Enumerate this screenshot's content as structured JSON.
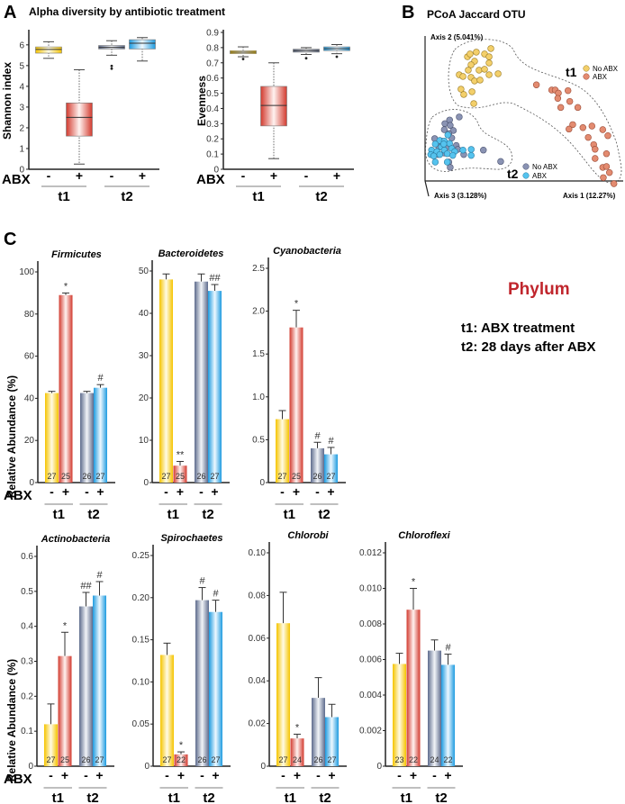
{
  "panel_labels": {
    "a": "A",
    "b": "B",
    "c": "C"
  },
  "panel_a": {
    "title": "Alpha diversity by antibiotic treatment"
  },
  "panel_b": {
    "title": "PCoA Jaccard OTU",
    "axis1": "Axis 1 (12.27%)",
    "axis2": "Axis 2 (5.041%)",
    "axis3": "Axis 3 (3.128%)",
    "legend_t1": "t1",
    "legend_t2": "t2",
    "no_abx": "No ABX",
    "abx": "ABX"
  },
  "panel_c": {
    "heading": "Phylum",
    "note1": "t1: ABX treatment",
    "note2": "t2: 28 days after ABX",
    "ylabel": "Relative Abundance (%)"
  },
  "common": {
    "abx": "ABX",
    "minus": "-",
    "plus": "+",
    "t1": "t1",
    "t2": "t2"
  },
  "colors": {
    "t1_no_abx": "#f5c400",
    "t1_abx": "#d23a2e",
    "t2_no_abx": "#5d6b8c",
    "t2_abx": "#1e9be0",
    "phylum": "#c0262d"
  },
  "chart_data": [
    {
      "type": "box",
      "id": "shannon",
      "ylabel": "Shannon index",
      "ylim": [
        0,
        6.6
      ],
      "ticks": [
        0,
        1,
        2,
        3,
        4,
        5,
        6
      ],
      "tick_labels": [
        "0",
        "1",
        "2",
        "3",
        "4",
        "5",
        "6"
      ],
      "groups": [
        "t1 No ABX",
        "t1 ABX",
        "t2 No ABX",
        "t2 ABX"
      ],
      "boxes": [
        {
          "min": 5.35,
          "q1": 5.6,
          "median": 5.78,
          "q3": 5.9,
          "max": 6.15,
          "outliers": []
        },
        {
          "min": 0.25,
          "q1": 1.6,
          "median": 2.5,
          "q3": 3.2,
          "max": 4.8,
          "outliers": []
        },
        {
          "min": 5.5,
          "q1": 5.8,
          "median": 5.88,
          "q3": 5.97,
          "max": 6.2,
          "outliers": [
            4.85,
            4.98
          ]
        },
        {
          "min": 5.22,
          "q1": 5.8,
          "median": 6.08,
          "q3": 6.25,
          "max": 6.35,
          "outliers": []
        }
      ]
    },
    {
      "type": "box",
      "id": "evenness",
      "ylabel": "Evenness",
      "ylim": [
        0,
        0.9
      ],
      "ticks": [
        0,
        0.1,
        0.2,
        0.3,
        0.4,
        0.5,
        0.6,
        0.7,
        0.8,
        0.9
      ],
      "tick_labels": [
        "0",
        "0.1",
        "0.2",
        "0.3",
        "0.4",
        "0.5",
        "0.6",
        "0.7",
        "0.8",
        "0.9"
      ],
      "groups": [
        "t1 No ABX",
        "t1 ABX",
        "t2 No ABX",
        "t2 ABX"
      ],
      "boxes": [
        {
          "min": 0.74,
          "q1": 0.76,
          "median": 0.77,
          "q3": 0.78,
          "max": 0.805,
          "outliers": [
            0.725
          ]
        },
        {
          "min": 0.07,
          "q1": 0.285,
          "median": 0.42,
          "q3": 0.545,
          "max": 0.7,
          "outliers": []
        },
        {
          "min": 0.755,
          "q1": 0.77,
          "median": 0.78,
          "q3": 0.79,
          "max": 0.8,
          "outliers": [
            0.73
          ]
        },
        {
          "min": 0.76,
          "q1": 0.78,
          "median": 0.793,
          "q3": 0.805,
          "max": 0.82,
          "outliers": [
            0.74
          ]
        }
      ]
    },
    {
      "type": "scatter",
      "id": "pcoa",
      "xlim": [
        0,
        100
      ],
      "ylim": [
        0,
        100
      ],
      "series": [
        {
          "name": "t1 No ABX",
          "points": [
            [
              21.6,
              85.6
            ],
            [
              22.9,
              87.5
            ],
            [
              26.1,
              88.8
            ],
            [
              30.3,
              87.5
            ],
            [
              33.5,
              91.3
            ],
            [
              32.6,
              85.6
            ],
            [
              25.2,
              82.5
            ],
            [
              23.4,
              80
            ],
            [
              22,
              76.3
            ],
            [
              27.5,
              76.3
            ],
            [
              30.3,
              76.9
            ],
            [
              37.2,
              73.8
            ],
            [
              17.4,
              73.1
            ],
            [
              19.3,
              71.9
            ],
            [
              23.4,
              71.3
            ],
            [
              25.2,
              68.8
            ],
            [
              28,
              69.4
            ],
            [
              32.6,
              81.3
            ],
            [
              18.3,
              63.1
            ],
            [
              19.7,
              59.4
            ],
            [
              23.9,
              61.3
            ],
            [
              24.8,
              53.1
            ],
            [
              32.6,
              73.1
            ]
          ]
        },
        {
          "name": "t1 ABX",
          "points": [
            [
              56.7,
              66.1
            ],
            [
              64.5,
              62.5
            ],
            [
              66.3,
              62.5
            ],
            [
              67.9,
              60.4
            ],
            [
              72.8,
              62.1
            ],
            [
              67.6,
              56.7
            ],
            [
              73.7,
              54.6
            ],
            [
              69.1,
              50.4
            ],
            [
              77.8,
              50.4
            ],
            [
              75.2,
              38.5
            ],
            [
              73.3,
              35.4
            ],
            [
              80.4,
              36.4
            ],
            [
              85,
              37.5
            ],
            [
              90.5,
              35
            ],
            [
              83.1,
              29.6
            ],
            [
              93.1,
              30.8
            ],
            [
              85.9,
              24.6
            ],
            [
              86.6,
              21.4
            ],
            [
              92.4,
              18.3
            ],
            [
              86.6,
              15
            ],
            [
              90.5,
              8.8
            ],
            [
              92.4,
              9.4
            ],
            [
              93.9,
              5.2
            ],
            [
              90.8,
              1.7
            ],
            [
              96.2,
              -2.5
            ]
          ]
        },
        {
          "name": "t2 No ABX",
          "points": [
            [
              17.4,
              43.8
            ],
            [
              10.1,
              39.2
            ],
            [
              12.5,
              41.7
            ],
            [
              12.8,
              38
            ],
            [
              9.8,
              35
            ],
            [
              14.4,
              34.4
            ],
            [
              12.1,
              32.3
            ],
            [
              4.9,
              28.8
            ],
            [
              13.6,
              29.2
            ],
            [
              8.3,
              27.1
            ],
            [
              15.9,
              24
            ],
            [
              7,
              22.9
            ],
            [
              10.6,
              22.5
            ],
            [
              16.7,
              21.3
            ],
            [
              19.7,
              17.7
            ],
            [
              29.7,
              20.8
            ],
            [
              38.5,
              12.9
            ],
            [
              12.1,
              12.5
            ],
            [
              6.4,
              17.7
            ],
            [
              12.8,
              8.8
            ],
            [
              9.8,
              18.8
            ]
          ]
        },
        {
          "name": "t2 ABX",
          "points": [
            [
              11.6,
              31.3
            ],
            [
              7.5,
              27.5
            ],
            [
              9.8,
              27.1
            ],
            [
              12.5,
              25.4
            ],
            [
              5.2,
              25
            ],
            [
              8.3,
              22.9
            ],
            [
              13.6,
              21.9
            ],
            [
              3.3,
              20.8
            ],
            [
              6,
              19.8
            ],
            [
              9.8,
              20.8
            ],
            [
              15.1,
              19.8
            ],
            [
              19.3,
              20.8
            ],
            [
              23.5,
              21.3
            ],
            [
              2.9,
              17.7
            ],
            [
              7.5,
              17.7
            ],
            [
              11.3,
              18.3
            ],
            [
              14.1,
              17.1
            ],
            [
              23.5,
              17.1
            ],
            [
              4.4,
              16.7
            ],
            [
              5.2,
              12.5
            ],
            [
              11.3,
              12.5
            ],
            [
              9.5,
              25
            ]
          ]
        }
      ]
    },
    {
      "type": "bar",
      "id": "firmicutes",
      "title": "Firmicutes",
      "ylim": [
        0,
        100
      ],
      "ticks": [
        0,
        20,
        40,
        60,
        80,
        100
      ],
      "tick_labels": [
        "0",
        "20",
        "40",
        "60",
        "80",
        "100"
      ],
      "values": [
        42.5,
        89,
        42.5,
        45
      ],
      "errors": [
        0.8,
        1.0,
        0.8,
        1.5
      ],
      "n": [
        "27",
        "25",
        "26",
        "27"
      ],
      "sig": [
        "",
        "*",
        "",
        "#"
      ]
    },
    {
      "type": "bar",
      "id": "bacteroidetes",
      "title": "Bacteroidetes",
      "ylim": [
        0,
        50
      ],
      "ticks": [
        0,
        10,
        20,
        30,
        40,
        50
      ],
      "tick_labels": [
        "0",
        "10",
        "20",
        "30",
        "40",
        "50"
      ],
      "values": [
        48,
        4,
        47.5,
        45.3
      ],
      "errors": [
        1.3,
        1.0,
        1.8,
        1.5
      ],
      "n": [
        "27",
        "25",
        "26",
        "27"
      ],
      "sig": [
        "",
        "**",
        "",
        "##"
      ]
    },
    {
      "type": "bar",
      "id": "cyanobacteria",
      "title": "Cyanobacteria",
      "ylim": [
        0,
        2.5
      ],
      "ticks": [
        0,
        0.5,
        1,
        1.5,
        2,
        2.5
      ],
      "tick_labels": [
        "0",
        "0.5",
        "1.0",
        "1.5",
        "2.0",
        "2.5"
      ],
      "values": [
        0.74,
        1.81,
        0.4,
        0.33
      ],
      "errors": [
        0.1,
        0.2,
        0.07,
        0.08
      ],
      "n": [
        "27",
        "25",
        "26",
        "27"
      ],
      "sig": [
        "",
        "*",
        "#",
        "#"
      ]
    },
    {
      "type": "bar",
      "id": "actinobacteria",
      "title": "Actinobacteria",
      "ylim": [
        0,
        0.6
      ],
      "ticks": [
        0,
        0.1,
        0.2,
        0.3,
        0.4,
        0.5,
        0.6
      ],
      "tick_labels": [
        "0",
        "0.1",
        "0.2",
        "0.3",
        "0.4",
        "0.5",
        "0.6"
      ],
      "values": [
        0.12,
        0.315,
        0.457,
        0.488
      ],
      "errors": [
        0.058,
        0.068,
        0.04,
        0.04
      ],
      "n": [
        "27",
        "25",
        "26",
        "27"
      ],
      "sig": [
        "",
        "*",
        "##",
        "#"
      ]
    },
    {
      "type": "bar",
      "id": "spirochaetes",
      "title": "Spirochaetes",
      "ylim": [
        0,
        0.25
      ],
      "ticks": [
        0,
        0.05,
        0.1,
        0.15,
        0.2,
        0.25
      ],
      "tick_labels": [
        "0",
        "0.05",
        "0.10",
        "0.15",
        "0.20",
        "0.25"
      ],
      "values": [
        0.132,
        0.014,
        0.197,
        0.183
      ],
      "errors": [
        0.014,
        0.003,
        0.015,
        0.014
      ],
      "n": [
        "27",
        "22",
        "26",
        "27"
      ],
      "sig": [
        "",
        "*",
        "#",
        "#"
      ]
    },
    {
      "type": "bar",
      "id": "chlorobi",
      "title": "Chlorobi",
      "ylim": [
        0,
        0.1
      ],
      "ticks": [
        0,
        0.02,
        0.04,
        0.06,
        0.08,
        0.1
      ],
      "tick_labels": [
        "0",
        "0.02",
        "0.04",
        "0.06",
        "0.08",
        "0.10"
      ],
      "values": [
        0.067,
        0.013,
        0.032,
        0.023
      ],
      "errors": [
        0.0145,
        0.002,
        0.0095,
        0.006
      ],
      "n": [
        "27",
        "24",
        "26",
        "27"
      ],
      "sig": [
        "",
        "*",
        "",
        ""
      ]
    },
    {
      "type": "bar",
      "id": "chloroflexi",
      "title": "Chloroflexi",
      "ylim": [
        0,
        0.012
      ],
      "ticks": [
        0,
        0.002,
        0.004,
        0.006,
        0.008,
        0.01,
        0.012
      ],
      "tick_labels": [
        "0",
        "0.002",
        "0.004",
        "0.006",
        "0.008",
        "0.010",
        "0.012"
      ],
      "values": [
        0.00575,
        0.0088,
        0.0065,
        0.0057
      ],
      "errors": [
        0.0006,
        0.0012,
        0.0006,
        0.0006
      ],
      "n": [
        "23",
        "22",
        "24",
        "22"
      ],
      "sig": [
        "",
        "*",
        "",
        "#"
      ]
    }
  ]
}
